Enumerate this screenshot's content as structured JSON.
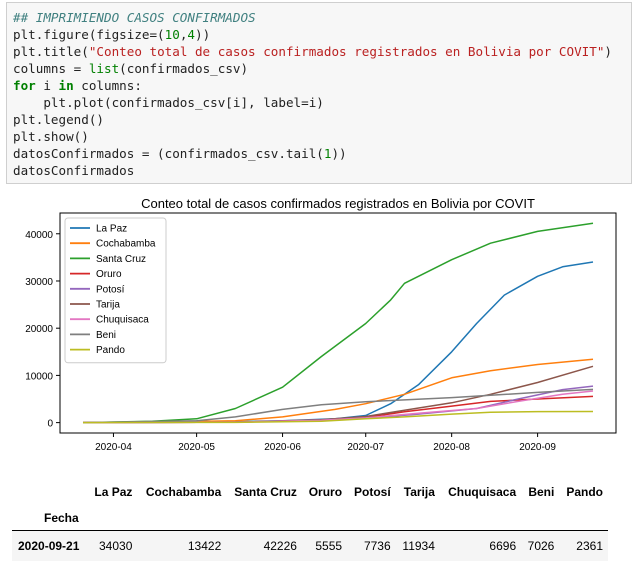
{
  "code_lines": [
    {
      "parts": [
        {
          "t": "## IMPRIMIENDO CASOS CONFIRMADOS",
          "c": "comment"
        }
      ]
    },
    {
      "parts": [
        {
          "t": "plt.figure(figsize=(",
          "c": ""
        },
        {
          "t": "10",
          "c": "num"
        },
        {
          "t": ",",
          "c": ""
        },
        {
          "t": "4",
          "c": "num"
        },
        {
          "t": "))",
          "c": ""
        }
      ]
    },
    {
      "parts": [
        {
          "t": "plt.title(",
          "c": ""
        },
        {
          "t": "\"Conteo total de casos confirmados registrados en Bolivia por COVIT\"",
          "c": "str"
        },
        {
          "t": ")",
          "c": ""
        }
      ]
    },
    {
      "parts": [
        {
          "t": "columns = ",
          "c": ""
        },
        {
          "t": "list",
          "c": "num"
        },
        {
          "t": "(confirmados_csv)",
          "c": ""
        }
      ]
    },
    {
      "parts": [
        {
          "t": "for",
          "c": "kw"
        },
        {
          "t": " i ",
          "c": ""
        },
        {
          "t": "in",
          "c": "kw"
        },
        {
          "t": " columns:",
          "c": ""
        }
      ]
    },
    {
      "parts": [
        {
          "t": "    plt.plot(confirmados_csv[i], label=i)",
          "c": ""
        }
      ]
    },
    {
      "parts": [
        {
          "t": "plt.legend()",
          "c": ""
        }
      ]
    },
    {
      "parts": [
        {
          "t": "plt.show()",
          "c": ""
        }
      ]
    },
    {
      "parts": [
        {
          "t": "datosConfirmados = (confirmados_csv.tail(",
          "c": ""
        },
        {
          "t": "1",
          "c": "num"
        },
        {
          "t": "))",
          "c": ""
        }
      ]
    },
    {
      "parts": [
        {
          "t": "datosConfirmados",
          "c": ""
        }
      ]
    }
  ],
  "chart_data": {
    "type": "line",
    "title": "Conteo total de casos confirmados registrados en Bolivia por COVIT",
    "x_start": "2020-03-21",
    "x_end": "2020-09-21",
    "x_ticks": [
      {
        "date": "2020-04-01",
        "label": "2020-04"
      },
      {
        "date": "2020-05-01",
        "label": "2020-05"
      },
      {
        "date": "2020-06-01",
        "label": "2020-06"
      },
      {
        "date": "2020-07-01",
        "label": "2020-07"
      },
      {
        "date": "2020-08-01",
        "label": "2020-08"
      },
      {
        "date": "2020-09-01",
        "label": "2020-09"
      }
    ],
    "ylim": [
      -2200,
      44400
    ],
    "y_ticks": [
      0,
      10000,
      20000,
      30000,
      40000
    ],
    "grid": false,
    "legend_position": "upper-left",
    "series": [
      {
        "name": "La Paz",
        "color": "#1f77b4",
        "points": [
          [
            "2020-03-21",
            0
          ],
          [
            "2020-04-15",
            100
          ],
          [
            "2020-05-15",
            200
          ],
          [
            "2020-06-01",
            400
          ],
          [
            "2020-06-20",
            800
          ],
          [
            "2020-07-01",
            1500
          ],
          [
            "2020-07-10",
            4000
          ],
          [
            "2020-07-20",
            8000
          ],
          [
            "2020-08-01",
            15000
          ],
          [
            "2020-08-10",
            21000
          ],
          [
            "2020-08-20",
            27000
          ],
          [
            "2020-09-01",
            31000
          ],
          [
            "2020-09-10",
            33000
          ],
          [
            "2020-09-21",
            34030
          ]
        ]
      },
      {
        "name": "Cochabamba",
        "color": "#ff7f0e",
        "points": [
          [
            "2020-03-21",
            0
          ],
          [
            "2020-04-15",
            100
          ],
          [
            "2020-05-15",
            400
          ],
          [
            "2020-06-01",
            1200
          ],
          [
            "2020-06-20",
            2800
          ],
          [
            "2020-07-01",
            4000
          ],
          [
            "2020-07-15",
            6000
          ],
          [
            "2020-08-01",
            9500
          ],
          [
            "2020-08-15",
            11000
          ],
          [
            "2020-09-01",
            12300
          ],
          [
            "2020-09-21",
            13422
          ]
        ]
      },
      {
        "name": "Santa Cruz",
        "color": "#2ca02c",
        "points": [
          [
            "2020-03-21",
            0
          ],
          [
            "2020-04-15",
            300
          ],
          [
            "2020-05-01",
            800
          ],
          [
            "2020-05-15",
            3000
          ],
          [
            "2020-06-01",
            7500
          ],
          [
            "2020-06-15",
            14000
          ],
          [
            "2020-07-01",
            21000
          ],
          [
            "2020-07-10",
            26000
          ],
          [
            "2020-07-15",
            29500
          ],
          [
            "2020-08-01",
            34500
          ],
          [
            "2020-08-15",
            38000
          ],
          [
            "2020-09-01",
            40500
          ],
          [
            "2020-09-21",
            42226
          ]
        ]
      },
      {
        "name": "Oruro",
        "color": "#d62728",
        "points": [
          [
            "2020-03-21",
            0
          ],
          [
            "2020-05-15",
            100
          ],
          [
            "2020-06-15",
            500
          ],
          [
            "2020-07-01",
            1100
          ],
          [
            "2020-07-15",
            2300
          ],
          [
            "2020-08-01",
            3500
          ],
          [
            "2020-08-15",
            4500
          ],
          [
            "2020-09-01",
            5000
          ],
          [
            "2020-09-21",
            5555
          ]
        ]
      },
      {
        "name": "Potosí",
        "color": "#9467bd",
        "points": [
          [
            "2020-03-21",
            0
          ],
          [
            "2020-05-15",
            100
          ],
          [
            "2020-06-15",
            400
          ],
          [
            "2020-07-01",
            900
          ],
          [
            "2020-07-20",
            1800
          ],
          [
            "2020-08-10",
            3000
          ],
          [
            "2020-08-25",
            5000
          ],
          [
            "2020-09-10",
            7000
          ],
          [
            "2020-09-21",
            7736
          ]
        ]
      },
      {
        "name": "Tarija",
        "color": "#8c564b",
        "points": [
          [
            "2020-03-21",
            0
          ],
          [
            "2020-05-15",
            100
          ],
          [
            "2020-06-15",
            600
          ],
          [
            "2020-07-01",
            1300
          ],
          [
            "2020-07-15",
            2600
          ],
          [
            "2020-08-01",
            4200
          ],
          [
            "2020-08-15",
            6000
          ],
          [
            "2020-09-01",
            8500
          ],
          [
            "2020-09-21",
            11934
          ]
        ]
      },
      {
        "name": "Chuquisaca",
        "color": "#e377c2",
        "points": [
          [
            "2020-03-21",
            0
          ],
          [
            "2020-05-15",
            100
          ],
          [
            "2020-06-15",
            500
          ],
          [
            "2020-07-01",
            1000
          ],
          [
            "2020-07-20",
            2000
          ],
          [
            "2020-08-10",
            3000
          ],
          [
            "2020-08-25",
            4500
          ],
          [
            "2020-09-10",
            6000
          ],
          [
            "2020-09-21",
            6696
          ]
        ]
      },
      {
        "name": "Beni",
        "color": "#7f7f7f",
        "points": [
          [
            "2020-03-21",
            0
          ],
          [
            "2020-05-01",
            400
          ],
          [
            "2020-05-15",
            1200
          ],
          [
            "2020-06-01",
            2800
          ],
          [
            "2020-06-15",
            3800
          ],
          [
            "2020-07-01",
            4400
          ],
          [
            "2020-08-01",
            5300
          ],
          [
            "2020-09-01",
            6400
          ],
          [
            "2020-09-21",
            7026
          ]
        ]
      },
      {
        "name": "Pando",
        "color": "#bcbd22",
        "points": [
          [
            "2020-03-21",
            0
          ],
          [
            "2020-05-15",
            50
          ],
          [
            "2020-06-15",
            300
          ],
          [
            "2020-07-01",
            800
          ],
          [
            "2020-07-15",
            1200
          ],
          [
            "2020-08-01",
            1800
          ],
          [
            "2020-08-15",
            2200
          ],
          [
            "2020-09-01",
            2330
          ],
          [
            "2020-09-21",
            2361
          ]
        ]
      }
    ]
  },
  "dataframe": {
    "columns": [
      "La Paz",
      "Cochabamba",
      "Santa Cruz",
      "Oruro",
      "Potosí",
      "Tarija",
      "Chuquisaca",
      "Beni",
      "Pando"
    ],
    "index_name": "Fecha",
    "rows": [
      {
        "index": "2020-09-21",
        "values": [
          "34030",
          "13422",
          "42226",
          "5555",
          "7736",
          "11934",
          "6696",
          "7026",
          "2361"
        ]
      }
    ]
  }
}
